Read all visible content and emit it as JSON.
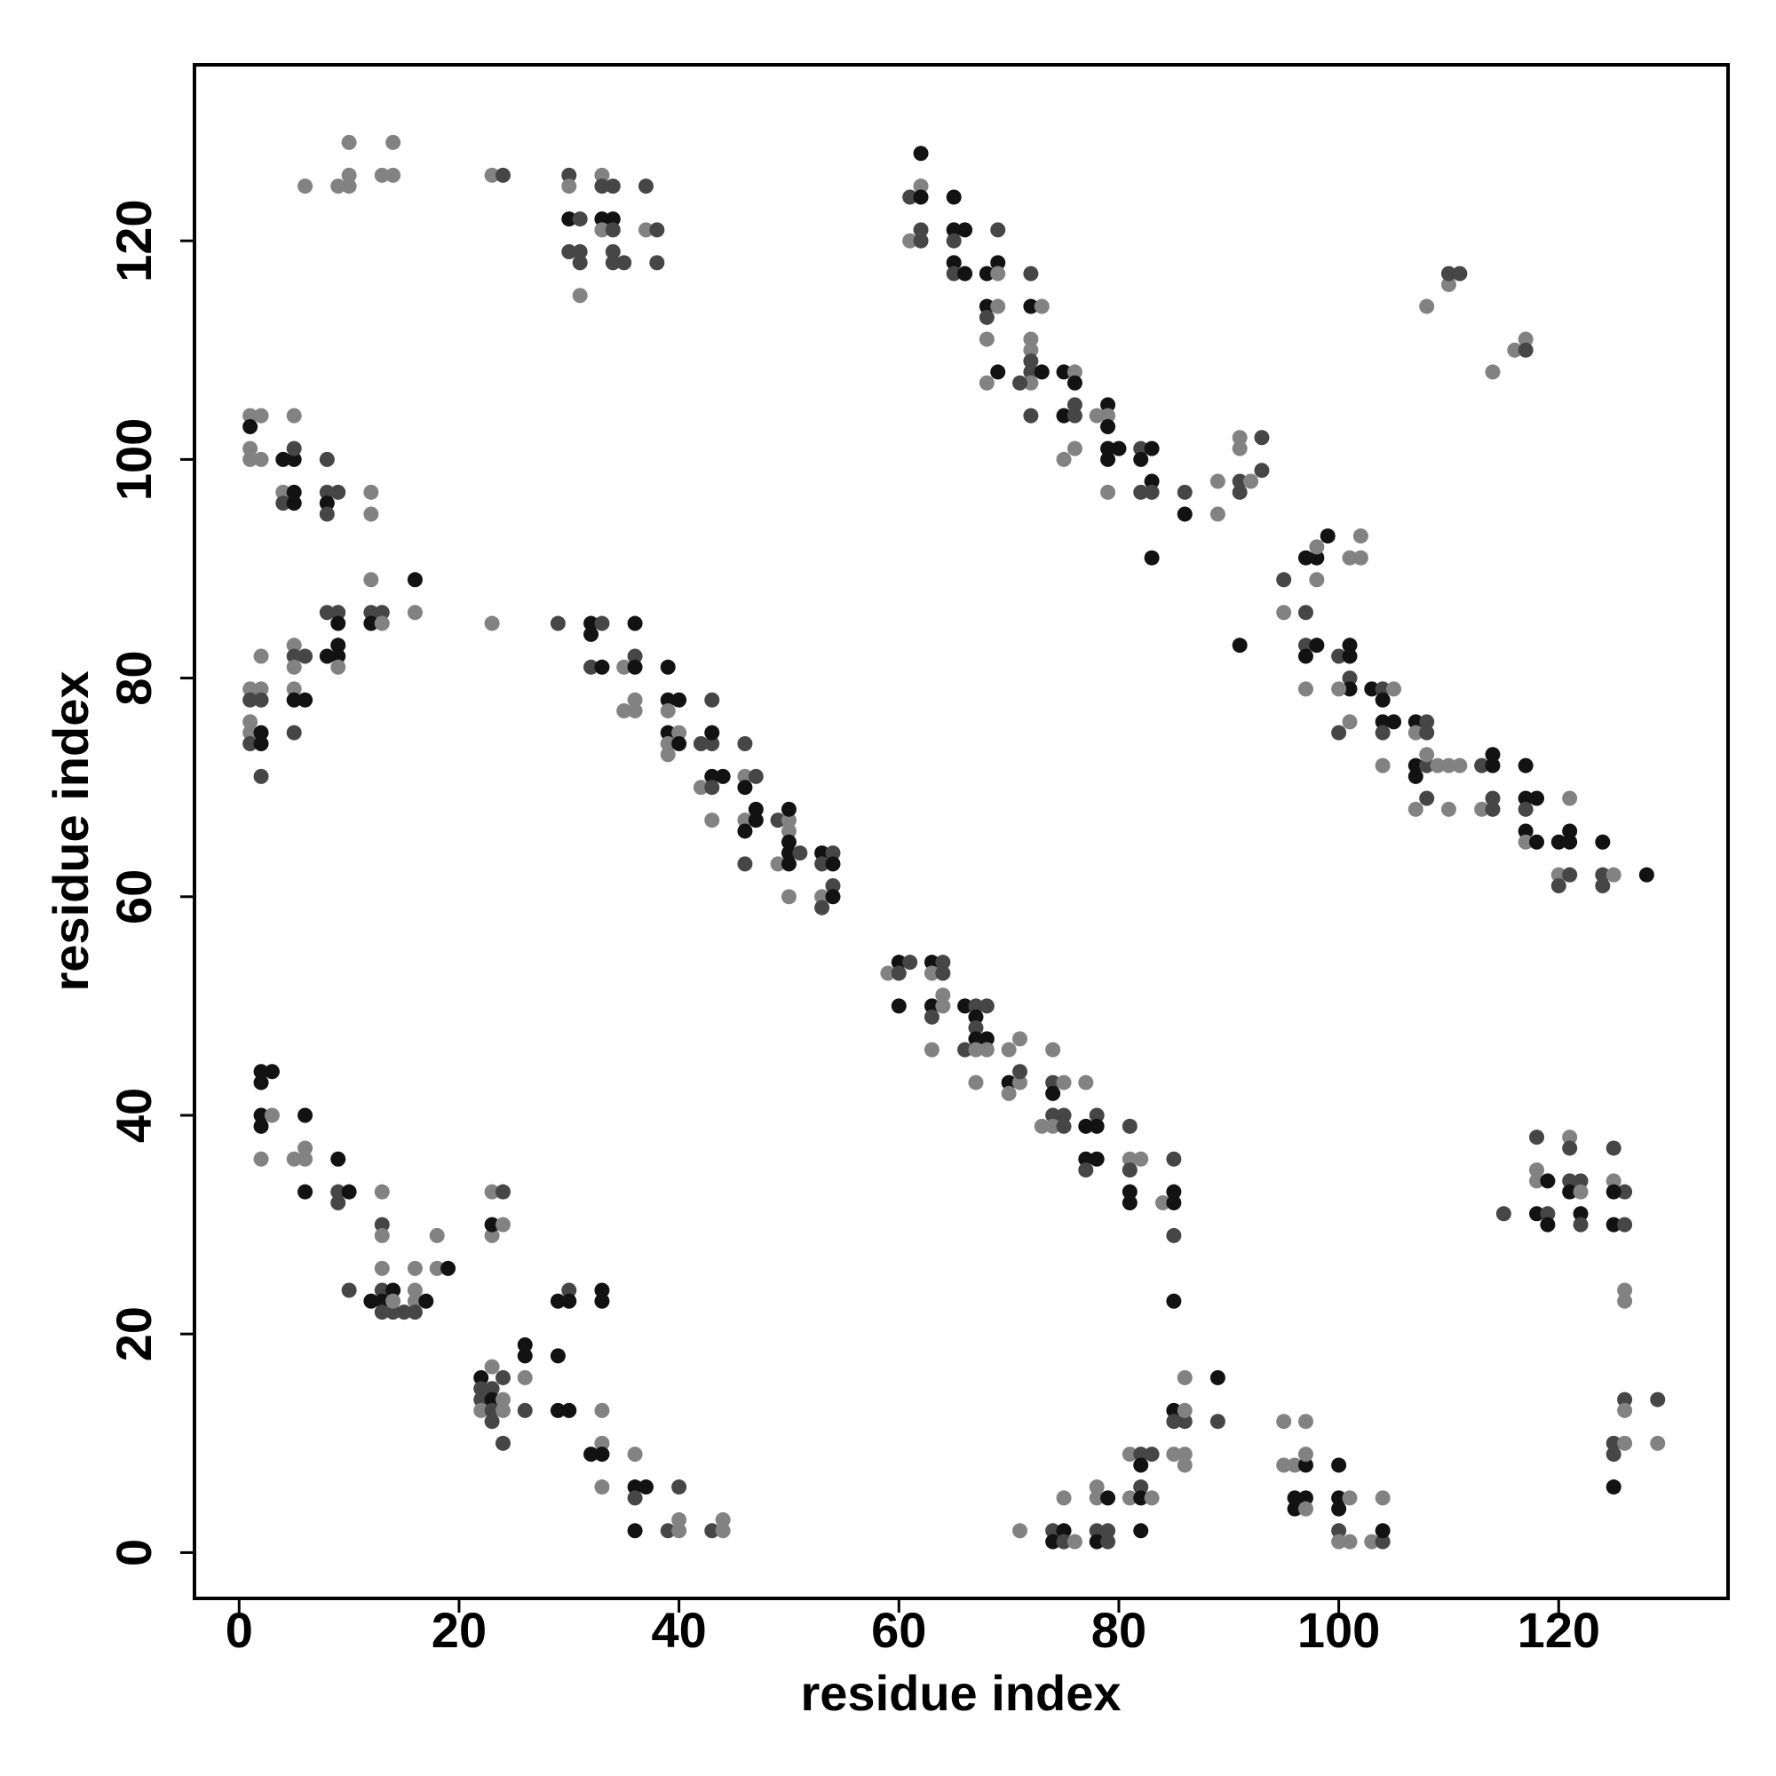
{
  "chart_data": {
    "type": "scatter",
    "xlabel": "residue index",
    "ylabel": "residue index",
    "xlim": [
      -4.06,
      135.4
    ],
    "ylim": [
      -4.19,
      136.1
    ],
    "xticks": [
      0,
      20,
      40,
      60,
      80,
      100,
      120
    ],
    "yticks": [
      0,
      20,
      40,
      60,
      80,
      100,
      120
    ],
    "grid": false,
    "x": [
      6,
      9,
      10,
      10,
      10,
      13,
      14,
      14,
      23,
      24,
      30,
      30,
      30,
      31,
      30,
      31,
      31,
      31,
      33,
      33,
      34,
      33,
      33,
      34,
      34,
      34,
      34,
      35,
      37,
      37,
      38,
      38,
      61,
      62,
      62,
      62,
      62,
      61,
      62,
      65,
      65,
      66,
      65,
      65,
      65,
      66,
      68,
      69,
      69,
      68,
      69,
      68,
      68,
      68,
      69,
      69,
      72,
      72,
      73,
      72,
      72,
      72,
      72,
      73,
      72,
      71,
      72,
      75,
      76,
      76,
      75,
      76,
      76,
      76,
      75,
      78,
      79,
      79,
      79,
      79,
      80,
      79,
      79,
      82,
      83,
      82,
      82,
      83,
      83,
      83,
      86,
      86,
      89,
      89,
      91,
      91,
      91,
      91,
      92,
      93,
      93,
      91,
      95,
      95,
      97,
      97,
      98,
      98,
      98,
      99,
      97,
      98,
      97,
      97,
      102,
      102,
      101,
      100,
      101,
      101,
      101,
      101,
      100,
      100,
      101,
      103,
      104,
      105,
      104,
      104,
      105,
      104,
      104,
      107,
      108,
      107,
      107,
      107,
      108,
      108,
      108,
      109,
      110,
      111,
      107,
      108,
      110,
      113,
      114,
      113,
      114,
      114,
      114,
      117,
      117,
      118,
      117,
      117,
      117,
      118,
      120,
      121,
      121,
      121,
      120,
      120,
      121,
      124,
      124,
      124,
      125,
      128,
      108,
      110,
      110,
      111,
      114,
      116,
      117,
      117,
      1,
      1,
      1,
      1,
      2,
      2,
      5,
      4,
      5,
      5,
      4,
      4,
      5,
      5,
      8,
      8,
      8,
      8,
      9,
      12,
      12,
      1,
      1,
      1,
      1,
      1,
      2,
      2,
      2,
      2,
      2,
      2,
      5,
      5,
      5,
      5,
      5,
      5,
      6,
      6,
      8,
      8,
      9,
      9,
      9,
      9,
      9,
      12,
      12,
      12,
      13,
      13,
      16,
      16,
      23,
      29,
      32,
      33,
      32,
      32,
      33,
      35,
      36,
      36,
      36,
      35,
      36,
      36,
      39,
      40,
      39,
      39,
      39,
      40,
      39,
      39,
      40,
      42,
      43,
      43,
      43,
      42,
      43,
      43,
      44,
      43,
      46,
      46,
      47,
      46,
      47,
      46,
      47,
      46,
      46,
      49,
      50,
      50,
      50,
      49,
      50,
      50,
      50,
      51,
      50,
      53,
      54,
      53,
      54,
      54,
      53,
      54,
      53,
      59,
      60,
      60,
      61,
      60,
      63,
      64,
      63,
      64,
      64,
      63,
      64,
      63,
      63,
      66,
      67,
      67,
      68,
      67,
      68,
      67,
      66,
      67,
      68,
      67,
      70,
      71,
      70,
      71,
      71,
      70,
      73,
      74,
      74,
      75,
      74,
      74,
      75,
      74,
      75,
      77,
      77,
      78,
      78,
      77,
      77,
      78,
      81,
      81,
      82,
      81,
      81,
      81,
      84,
      85,
      85,
      85,
      85,
      85,
      2,
      3,
      2,
      2,
      3,
      2,
      2,
      6,
      6,
      5,
      6,
      6,
      9,
      9,
      10,
      9,
      13,
      13,
      13,
      10,
      13,
      12,
      13,
      14,
      13,
      13,
      14,
      14,
      15,
      16,
      16,
      16,
      16,
      17,
      18,
      19,
      18,
      23,
      24,
      23,
      23,
      24,
      22,
      22,
      22,
      22,
      23,
      23,
      23,
      23,
      23,
      24,
      24,
      24,
      24,
      26,
      26,
      26,
      26,
      29,
      29,
      30,
      30,
      33,
      33,
      29,
      30,
      33,
      32,
      33,
      33,
      33,
      36,
      36,
      37,
      36,
      36,
      40,
      40,
      39,
      40,
      43,
      44,
      44,
      71,
      74,
      75,
      74,
      75,
      76,
      75,
      78,
      78,
      79,
      78,
      79,
      78,
      79,
      81,
      82,
      82,
      83,
      81,
      82,
      82,
      83,
      82,
      85,
      85,
      86,
      86,
      85,
      86,
      86,
      86,
      89,
      89,
      95,
      95,
      96,
      97,
      97,
      97,
      96,
      96,
      97,
      97,
      100,
      100,
      101,
      100,
      100,
      100,
      101,
      103,
      104,
      104,
      104,
      118,
      118,
      118,
      119,
      118,
      119,
      119,
      115,
      121,
      121,
      121,
      121,
      122,
      122,
      122,
      122,
      125,
      125,
      126,
      125,
      125,
      126,
      126,
      126,
      126,
      126,
      125,
      126,
      125,
      125,
      129,
      129
    ],
    "values": [
      125,
      125,
      125,
      126,
      129,
      126,
      126,
      129,
      126,
      126,
      126,
      125,
      122,
      122,
      119,
      119,
      118,
      115,
      126,
      125,
      125,
      122,
      121,
      122,
      121,
      119,
      118,
      118,
      125,
      121,
      121,
      118,
      124,
      125,
      128,
      124,
      121,
      120,
      120,
      124,
      121,
      121,
      120,
      118,
      117,
      117,
      117,
      118,
      117,
      114,
      114,
      113,
      111,
      107,
      108,
      121,
      117,
      114,
      114,
      111,
      110,
      109,
      108,
      108,
      107,
      107,
      104,
      108,
      108,
      107,
      104,
      104,
      105,
      101,
      100,
      104,
      105,
      104,
      103,
      101,
      101,
      100,
      97,
      101,
      101,
      97,
      100,
      98,
      97,
      91,
      97,
      95,
      95,
      98,
      102,
      101,
      97,
      98,
      98,
      102,
      99,
      83,
      89,
      86,
      91,
      86,
      91,
      92,
      89,
      93,
      83,
      83,
      82,
      79,
      93,
      91,
      91,
      82,
      82,
      83,
      80,
      79,
      79,
      75,
      76,
      79,
      79,
      79,
      78,
      76,
      76,
      75,
      72,
      76,
      76,
      75,
      71,
      72,
      72,
      73,
      75,
      72,
      72,
      72,
      68,
      69,
      68,
      68,
      68,
      72,
      73,
      72,
      69,
      72,
      69,
      69,
      68,
      66,
      65,
      65,
      65,
      66,
      65,
      69,
      62,
      61,
      62,
      65,
      62,
      61,
      62,
      62,
      114,
      116,
      117,
      117,
      108,
      110,
      111,
      110,
      104,
      103,
      100,
      101,
      104,
      100,
      100,
      100,
      104,
      101,
      97,
      96,
      97,
      96,
      100,
      97,
      96,
      95,
      97,
      97,
      95,
      79,
      78,
      76,
      75,
      74,
      79,
      78,
      75,
      74,
      71,
      82,
      83,
      82,
      81,
      79,
      78,
      75,
      82,
      78,
      86,
      82,
      86,
      85,
      82,
      83,
      81,
      89,
      86,
      85,
      86,
      85,
      89,
      86,
      85,
      85,
      85,
      85,
      84,
      81,
      81,
      81,
      82,
      81,
      85,
      77,
      77,
      78,
      78,
      78,
      81,
      77,
      75,
      75,
      73,
      74,
      74,
      74,
      74,
      75,
      78,
      70,
      71,
      70,
      71,
      67,
      74,
      71,
      71,
      70,
      68,
      67,
      67,
      66,
      63,
      67,
      67,
      68,
      66,
      63,
      64,
      63,
      65,
      64,
      60,
      64,
      64,
      63,
      63,
      61,
      60,
      60,
      59,
      53,
      54,
      53,
      54,
      50,
      54,
      54,
      53,
      53,
      51,
      50,
      50,
      49,
      46,
      50,
      50,
      49,
      50,
      48,
      47,
      47,
      46,
      46,
      46,
      43,
      46,
      47,
      43,
      43,
      44,
      42,
      39,
      46,
      43,
      43,
      42,
      40,
      40,
      39,
      39,
      43,
      39,
      40,
      39,
      36,
      35,
      36,
      39,
      36,
      36,
      35,
      33,
      32,
      32,
      36,
      33,
      32,
      29,
      23,
      44,
      44,
      43,
      40,
      40,
      39,
      36,
      40,
      37,
      36,
      36,
      33,
      36,
      33,
      33,
      32,
      33,
      30,
      29,
      24,
      26,
      23,
      24,
      24,
      23,
      22,
      22,
      23,
      22,
      24,
      26,
      23,
      22,
      23,
      26,
      26,
      29,
      33,
      33,
      29,
      30,
      30,
      16,
      14,
      15,
      13,
      17,
      15,
      14,
      12,
      13,
      16,
      14,
      13,
      10,
      18,
      19,
      16,
      13,
      18,
      23,
      24,
      23,
      24,
      23,
      13,
      13,
      13,
      9,
      10,
      9,
      6,
      9,
      6,
      6,
      5,
      2,
      6,
      3,
      2,
      2,
      2,
      3,
      2,
      2,
      2,
      2,
      1,
      1,
      1,
      5,
      6,
      5,
      5,
      2,
      2,
      1,
      1,
      9,
      9,
      8,
      9,
      5,
      6,
      5,
      5,
      2,
      13,
      12,
      12,
      13,
      9,
      9,
      8,
      16,
      16,
      12,
      12,
      8,
      8,
      8,
      12,
      9,
      5,
      4,
      5,
      4,
      8,
      5,
      5,
      4,
      2,
      1,
      1,
      1,
      1,
      2,
      5,
      38,
      35,
      34,
      34,
      31,
      31,
      30,
      31,
      38,
      37,
      34,
      33,
      34,
      33,
      31,
      30,
      37,
      34,
      33,
      33,
      30,
      30,
      24,
      23,
      14,
      13,
      10,
      10,
      9,
      6,
      14,
      10
    ],
    "colors": "gggggggggd dgkddddggddkgkdddddgd ddgkkdgdkkkdkdkkkgkgdggkddkgggddkgddkgkkddgggkgkkkkgdkdkkdkdkggggddgdd kdgkdkggkdkkggggdkkdkgdgkdgkkkdgkdgkkdgdggggdggddkkdkkkdkgkkkkggddkddgkggddggg dgkggggkkgdgdkkddkddggg dggdgdkkdggdggkddkdkdkkkggdkdgkggd kdkdkgdkkgggkkkgkgggkddkdgkdkgdgdkkgkkddgkggkkkdgkd dkdgkdgkdd kkdgdgkgdgkdkddkkdgggggkgdgggdgkddgdgkdkkdkd ggdkkgdkkdkkkkkgkgkgggkkdkdgdgdgkdkkddgdgggdkgkggdgkgk ddggdkddd ggdkkgdkkdkkkkkgkgkggkkdkdgdgdgggdkkdggggk dd kdgdkdgdkgkkddgggggkdgggkggkkkgkkgkdgg gdkgdggkkdkdgddkdgkddgdkkdggdgdgdkdgdkgdkgdgkdgdkggg dddgdddggddgkkddddgggddggggdgdgg",
    "palette": {
      "k": "#121212",
      "d": "#464646",
      "g": "#828282"
    }
  }
}
